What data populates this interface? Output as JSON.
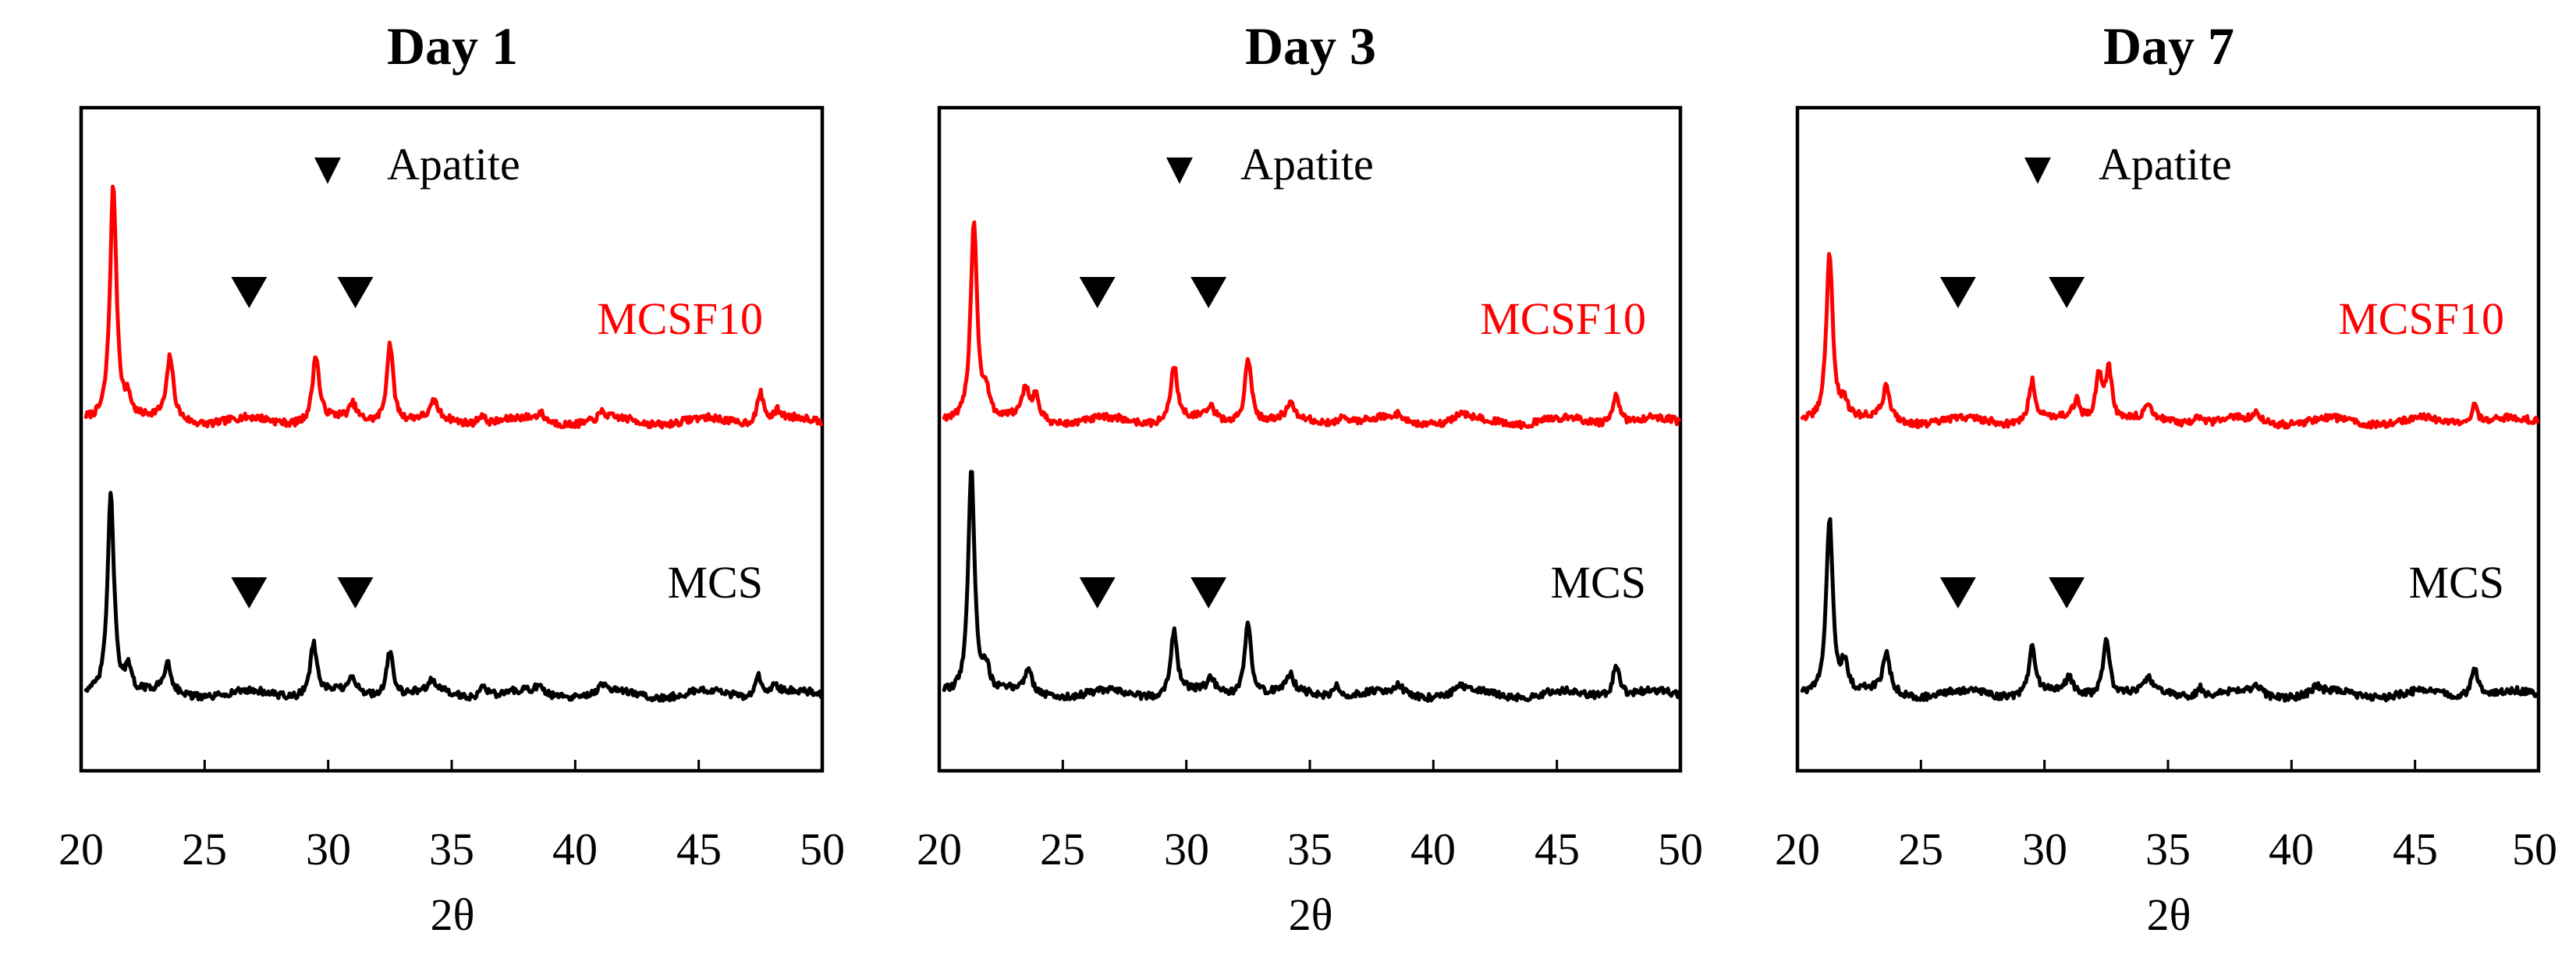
{
  "chart_data": [
    {
      "type": "line",
      "title": "Day 1",
      "xlabel": "2θ",
      "ylabel": "",
      "xlim": [
        20,
        50
      ],
      "x_ticks": [
        20,
        25,
        30,
        35,
        40,
        45,
        50
      ],
      "tick_labels": [
        "20",
        "25",
        "30",
        "35",
        "40",
        "45",
        "50"
      ],
      "legend": {
        "symbol": "▼",
        "label": "Apatite",
        "placement": "top-center"
      },
      "series": [
        {
          "name": "MCSF10",
          "color": "#ff0000",
          "offset": 1.0,
          "peaks": [
            [
              21.3,
              1.0
            ],
            [
              21.9,
              0.08
            ],
            [
              23.6,
              0.26
            ],
            [
              29.5,
              0.28
            ],
            [
              31.0,
              0.06
            ],
            [
              32.5,
              0.34
            ],
            [
              34.3,
              0.07
            ],
            [
              36.2,
              0.04
            ],
            [
              38.6,
              0.03
            ],
            [
              41.1,
              0.03
            ],
            [
              47.5,
              0.13
            ],
            [
              48.2,
              0.04
            ]
          ],
          "apatite_markers": [
            26.8,
            31.1
          ]
        },
        {
          "name": "MCS",
          "color": "#000000",
          "offset": 0.0,
          "peaks": [
            [
              21.2,
              0.85
            ],
            [
              21.9,
              0.1
            ],
            [
              23.5,
              0.12
            ],
            [
              29.4,
              0.22
            ],
            [
              31.0,
              0.06
            ],
            [
              32.5,
              0.2
            ],
            [
              34.2,
              0.05
            ],
            [
              36.3,
              0.05
            ],
            [
              38.5,
              0.03
            ],
            [
              41.1,
              0.03
            ],
            [
              47.4,
              0.09
            ],
            [
              48.1,
              0.04
            ]
          ],
          "apatite_markers": [
            26.8,
            31.1
          ]
        }
      ]
    },
    {
      "type": "line",
      "title": "Day 3",
      "xlabel": "2θ",
      "ylabel": "",
      "xlim": [
        20,
        50
      ],
      "x_ticks": [
        20,
        25,
        30,
        35,
        40,
        45,
        50
      ],
      "tick_labels": [
        "20",
        "25",
        "30",
        "35",
        "40",
        "45",
        "50"
      ],
      "legend": {
        "symbol": "▼",
        "label": "Apatite",
        "placement": "top-center"
      },
      "series": [
        {
          "name": "MCSF10",
          "color": "#ff0000",
          "offset": 1.0,
          "peaks": [
            [
              21.4,
              0.85
            ],
            [
              21.9,
              0.1
            ],
            [
              23.5,
              0.12
            ],
            [
              23.9,
              0.1
            ],
            [
              29.5,
              0.24
            ],
            [
              31.0,
              0.05
            ],
            [
              32.5,
              0.28
            ],
            [
              34.2,
              0.06
            ],
            [
              36.3,
              0.04
            ],
            [
              38.6,
              0.03
            ],
            [
              41.1,
              0.03
            ],
            [
              47.4,
              0.12
            ]
          ],
          "apatite_markers": [
            26.4,
            30.9
          ]
        },
        {
          "name": "MCS",
          "color": "#000000",
          "offset": 0.0,
          "peaks": [
            [
              21.3,
              0.95
            ],
            [
              21.9,
              0.1
            ],
            [
              23.6,
              0.1
            ],
            [
              29.5,
              0.27
            ],
            [
              31.0,
              0.06
            ],
            [
              32.5,
              0.31
            ],
            [
              34.2,
              0.07
            ],
            [
              36.1,
              0.05
            ],
            [
              38.6,
              0.04
            ],
            [
              41.1,
              0.03
            ],
            [
              47.4,
              0.14
            ]
          ],
          "apatite_markers": [
            26.4,
            30.9
          ]
        }
      ]
    },
    {
      "type": "line",
      "title": "Day 7",
      "xlabel": "2θ",
      "ylabel": "",
      "xlim": [
        20,
        50
      ],
      "x_ticks": [
        20,
        25,
        30,
        35,
        40,
        45,
        50
      ],
      "tick_labels": [
        "20",
        "25",
        "30",
        "35",
        "40",
        "45",
        "50"
      ],
      "legend": {
        "symbol": "▼",
        "label": "Apatite",
        "placement": "top-center"
      },
      "series": [
        {
          "name": "MCSF10",
          "color": "#ff0000",
          "offset": 1.0,
          "peaks": [
            [
              21.3,
              0.72
            ],
            [
              21.9,
              0.08
            ],
            [
              23.6,
              0.14
            ],
            [
              29.5,
              0.17
            ],
            [
              31.3,
              0.08
            ],
            [
              32.2,
              0.2
            ],
            [
              32.6,
              0.22
            ],
            [
              34.2,
              0.05
            ],
            [
              36.2,
              0.03
            ],
            [
              38.6,
              0.03
            ],
            [
              47.4,
              0.08
            ]
          ],
          "apatite_markers": [
            26.5,
            30.9
          ]
        },
        {
          "name": "MCS",
          "color": "#000000",
          "offset": 0.0,
          "peaks": [
            [
              21.3,
              0.75
            ],
            [
              21.9,
              0.12
            ],
            [
              23.6,
              0.17
            ],
            [
              29.5,
              0.2
            ],
            [
              31.0,
              0.06
            ],
            [
              32.5,
              0.25
            ],
            [
              34.2,
              0.06
            ],
            [
              36.3,
              0.04
            ],
            [
              38.6,
              0.03
            ],
            [
              41.0,
              0.03
            ],
            [
              47.4,
              0.13
            ]
          ],
          "apatite_markers": [
            26.5,
            30.9
          ]
        }
      ]
    }
  ]
}
